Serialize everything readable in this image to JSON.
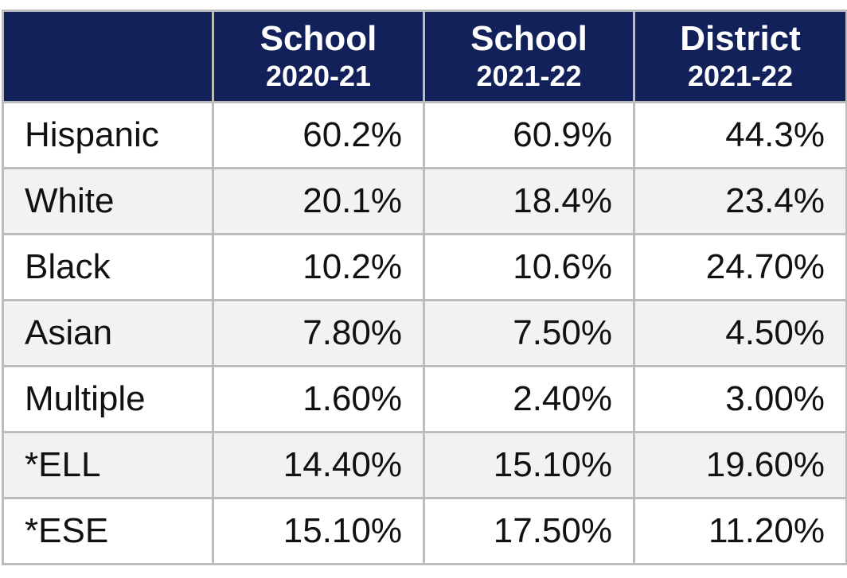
{
  "table": {
    "header": [
      {
        "title": "School",
        "year": "2020-21"
      },
      {
        "title": "School",
        "year": "2021-22"
      },
      {
        "title": "District",
        "year": "2021-22"
      }
    ],
    "rows": [
      [
        "Hispanic",
        "60.2%",
        "60.9%",
        "44.3%"
      ],
      [
        "White",
        "20.1%",
        "18.4%",
        "23.4%"
      ],
      [
        "Black",
        "10.2%",
        "10.6%",
        "24.70%"
      ],
      [
        "Asian",
        "7.80%",
        "7.50%",
        "4.50%"
      ],
      [
        "Multiple",
        "1.60%",
        "2.40%",
        "3.00%"
      ],
      [
        "*ELL",
        "14.40%",
        "15.10%",
        "19.60%"
      ],
      [
        "*ESE",
        "15.10%",
        "17.50%",
        "11.20%"
      ]
    ]
  }
}
